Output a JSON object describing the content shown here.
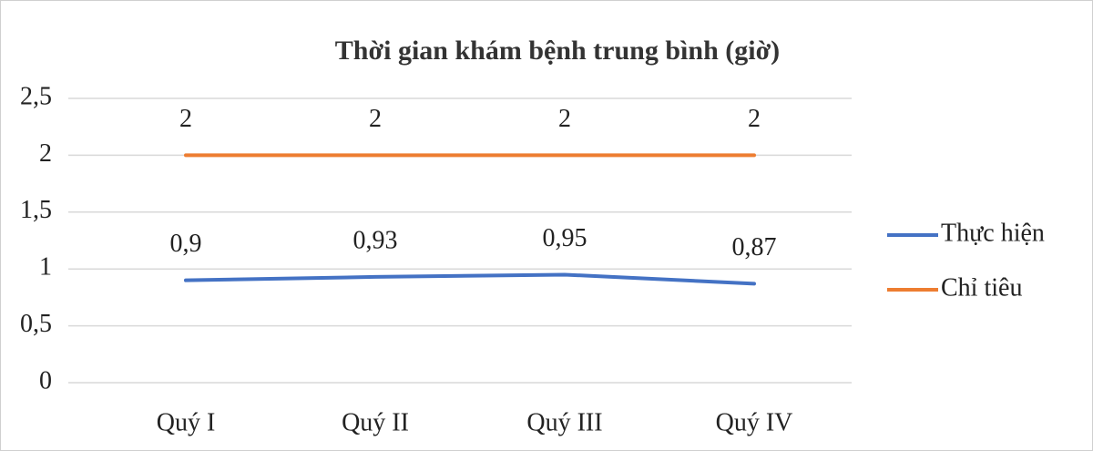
{
  "chart_data": {
    "type": "line",
    "title": "Thời gian khám bệnh trung bình (giờ)",
    "categories": [
      "Quý I",
      "Quý II",
      "Quý III",
      "Quý IV"
    ],
    "series": [
      {
        "name": "Thực hiện",
        "color": "#4472c4",
        "values": [
          0.9,
          0.93,
          0.95,
          0.87
        ],
        "value_labels": [
          "0,9",
          "0,93",
          "0,95",
          "0,87"
        ]
      },
      {
        "name": "Chỉ tiêu",
        "color": "#ed7d31",
        "values": [
          2,
          2,
          2,
          2
        ]
      }
    ],
    "ylim": [
      0,
      2.5
    ],
    "yticks": [
      0,
      {
        "value": 0.5,
        "label": "0,5"
      },
      1,
      {
        "value": 1.5,
        "label": "1,5"
      },
      2,
      {
        "value": 2.5,
        "label": "2,5"
      }
    ],
    "grid": true,
    "legend": "right"
  }
}
